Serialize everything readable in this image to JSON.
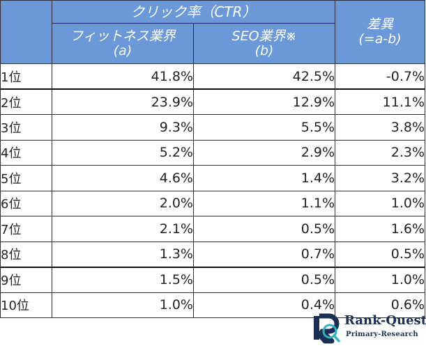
{
  "chart_data": {
    "type": "table",
    "header_group": "クリック率（CTR）",
    "columns": [
      {
        "label": "フィットネス業界",
        "sub": "(a)"
      },
      {
        "label": "SEO業界※",
        "sub": "(b)"
      },
      {
        "label": "差異",
        "sub": "(=a-b)"
      }
    ],
    "rows": [
      {
        "rank": "1位",
        "a": "41.8%",
        "b": "42.5%",
        "diff": "-0.7%"
      },
      {
        "rank": "2位",
        "a": "23.9%",
        "b": "12.9%",
        "diff": "11.1%"
      },
      {
        "rank": "3位",
        "a": "9.3%",
        "b": "5.5%",
        "diff": "3.8%"
      },
      {
        "rank": "4位",
        "a": "5.2%",
        "b": "2.9%",
        "diff": "2.3%"
      },
      {
        "rank": "5位",
        "a": "4.6%",
        "b": "1.4%",
        "diff": "3.2%"
      },
      {
        "rank": "6位",
        "a": "2.0%",
        "b": "1.1%",
        "diff": "1.0%"
      },
      {
        "rank": "7位",
        "a": "2.1%",
        "b": "0.5%",
        "diff": "1.6%"
      },
      {
        "rank": "8位",
        "a": "1.3%",
        "b": "0.7%",
        "diff": "0.5%"
      },
      {
        "rank": "9位",
        "a": "1.5%",
        "b": "0.5%",
        "diff": "1.0%"
      },
      {
        "rank": "10位",
        "a": "1.0%",
        "b": "0.4%",
        "diff": "0.6%"
      }
    ]
  },
  "logo": {
    "title": "Rank-Quest",
    "subtitle": "Primary-Research",
    "icon": "rq-logo-icon"
  },
  "colors": {
    "header_bg": "#6a98d8",
    "header_text": "#ffffff",
    "logo_navy": "#1b2f55",
    "logo_teal": "#2bb3c0"
  }
}
